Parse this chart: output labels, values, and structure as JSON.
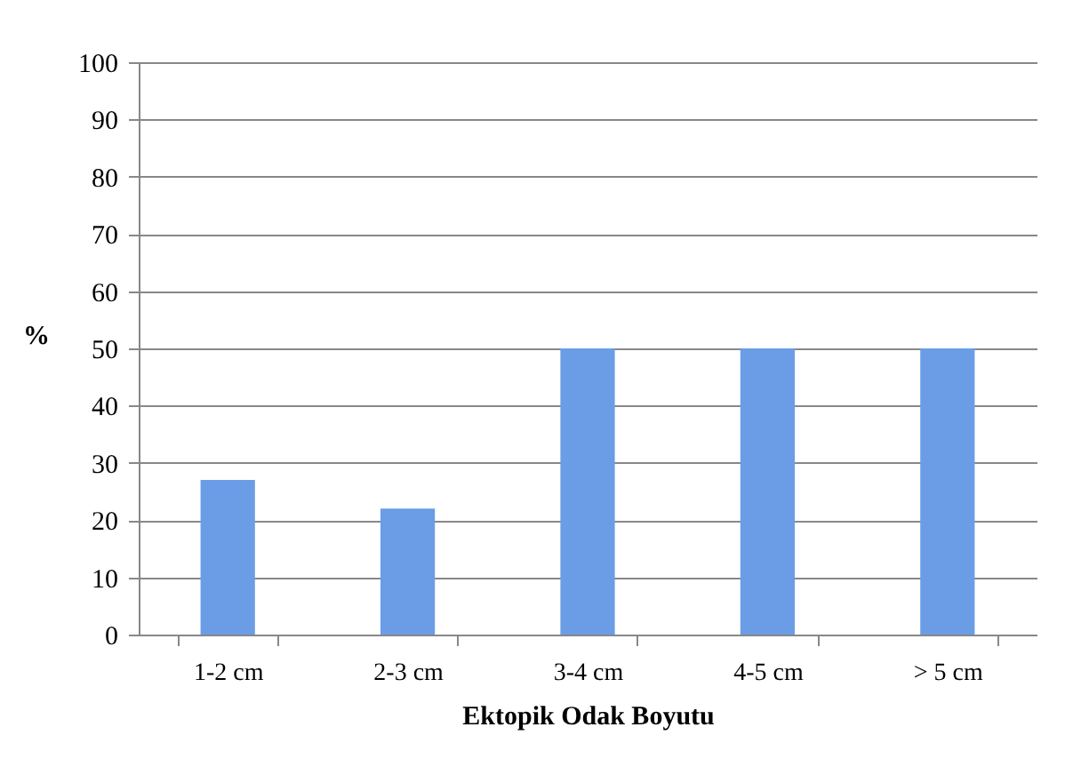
{
  "chart_data": {
    "type": "bar",
    "xlabel": "Ektopik Odak Boyutu",
    "ylabel": "%",
    "categories": [
      "1-2 cm",
      "2-3 cm",
      "3-4 cm",
      "4-5 cm",
      "> 5 cm"
    ],
    "values": [
      27,
      22,
      50,
      50,
      50
    ],
    "color": "#6a9de6",
    "ylim": [
      0,
      100
    ],
    "yticks": [
      0,
      10,
      20,
      30,
      40,
      50,
      60,
      70,
      80,
      90,
      100
    ],
    "grid": "y"
  }
}
